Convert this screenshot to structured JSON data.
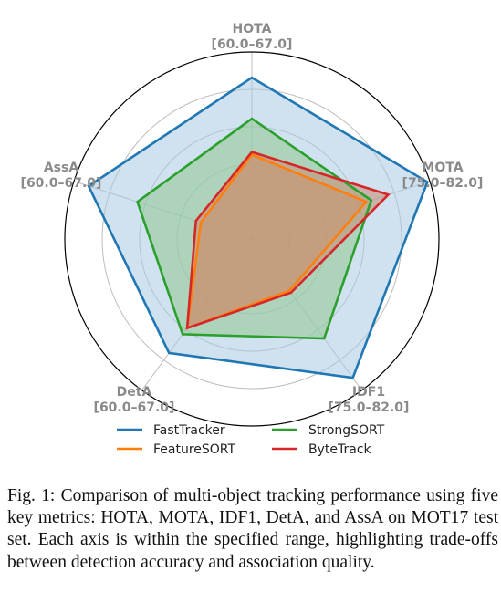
{
  "chart_data": {
    "type": "radar",
    "axes": [
      {
        "name": "HOTA",
        "range_label": "[60.0–67.0]",
        "min": 60.0,
        "max": 67.0
      },
      {
        "name": "MOTA",
        "range_label": "[75.0–82.0]",
        "min": 75.0,
        "max": 82.0
      },
      {
        "name": "IDF1",
        "range_label": "[75.0–82.0]",
        "min": 75.0,
        "max": 82.0
      },
      {
        "name": "DetA",
        "range_label": "[60.0–67.0]",
        "min": 60.0,
        "max": 67.0
      },
      {
        "name": "AssA",
        "range_label": "[60.0–67.0]",
        "min": 60.0,
        "max": 67.0
      }
    ],
    "series": [
      {
        "name": "FastTracker",
        "color": "#1f77b4",
        "fill": "#a9c9e3",
        "values": [
          66.0,
          81.9,
          81.4,
          65.2,
          66.4
        ]
      },
      {
        "name": "StrongSORT",
        "color": "#2ca02c",
        "fill": "#8fca8f",
        "values": [
          64.4,
          79.6,
          79.5,
          64.3,
          64.4
        ]
      },
      {
        "name": "FeatureSORT",
        "color": "#ff7f0e",
        "fill": "#c9a06b",
        "values": [
          63.0,
          79.4,
          77.2,
          64.0,
          61.8
        ]
      },
      {
        "name": "ByteTrack",
        "color": "#d62728",
        "fill": "#c98a72",
        "values": [
          63.1,
          80.3,
          77.3,
          64.0,
          62.0
        ]
      }
    ],
    "legend": "bottom, two columns",
    "grid": true
  },
  "caption": "Fig. 1: Comparison of multi-object tracking performance using five key metrics: HOTA, MOTA, IDF1, DetA, and AssA on MOT17 test set. Each axis is within the specified range, highlighting trade-offs between detection accuracy and association quality."
}
